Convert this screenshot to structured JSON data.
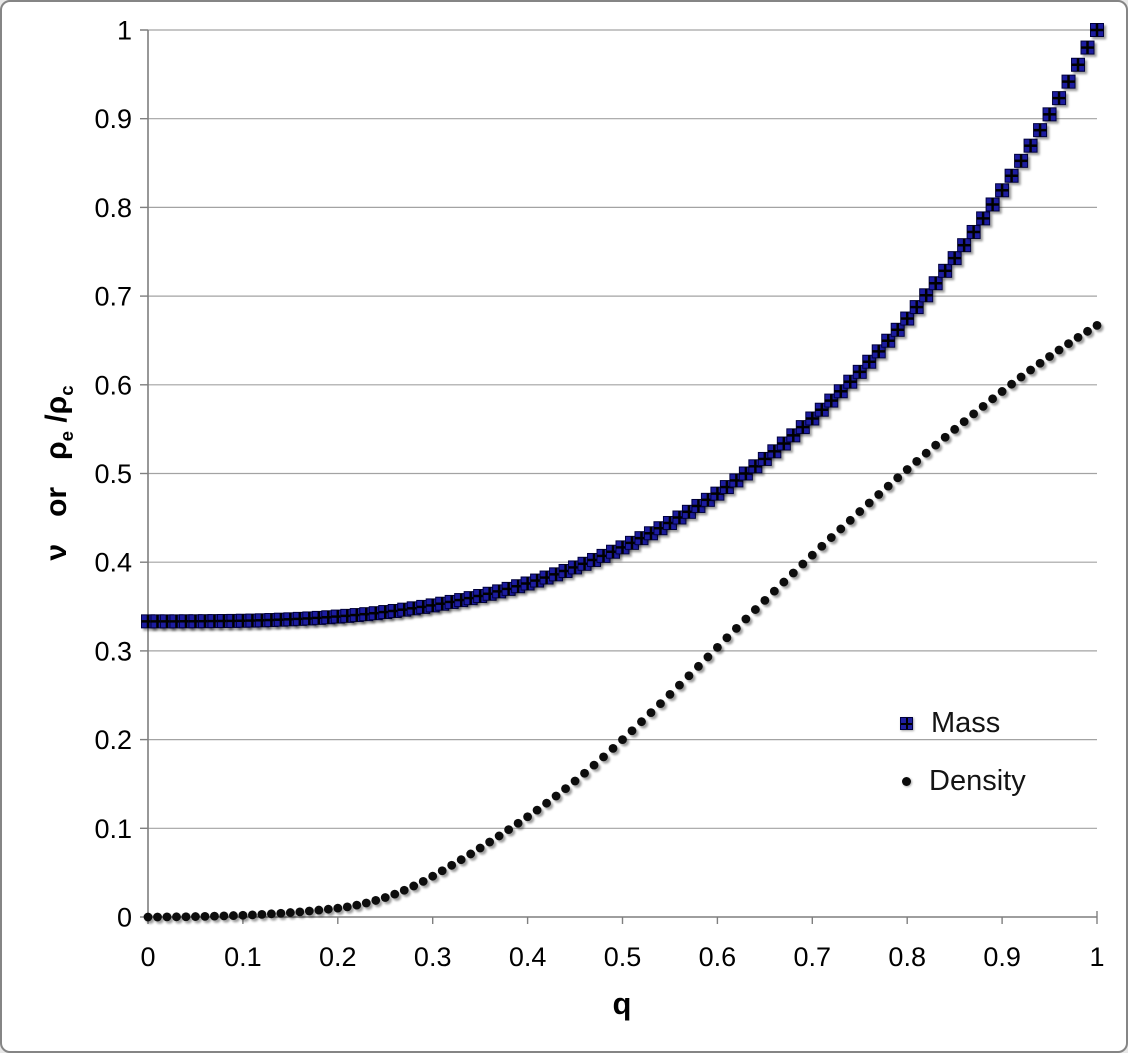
{
  "chart_data": {
    "type": "scatter",
    "title": "",
    "xlabel": "q",
    "ylabel": "ν  or  ρe/ρc",
    "ylabel_parts": {
      "nu": "ν",
      "or": "or",
      "rho1": "ρ",
      "sub1": "e",
      "slash": " /",
      "rho2": "ρ",
      "sub2": "c"
    },
    "xlim": [
      0,
      1
    ],
    "ylim": [
      0,
      1
    ],
    "grid": "horizontal-only",
    "legend_position": "right-center",
    "colors": {
      "mass_fill": "#1f1fa0",
      "mass_border": "#00003c",
      "mass_cross": "#000000",
      "density_fill": "#0a0a0a",
      "gridline": "#a3a3a3",
      "axis": "#7f7f7f",
      "text": "#000000"
    },
    "xticks": {
      "values": [
        0,
        0.1,
        0.2,
        0.3,
        0.4,
        0.5,
        0.6,
        0.7,
        0.8,
        0.9,
        1
      ],
      "labels": [
        "0",
        "0.1",
        "0.2",
        "0.3",
        "0.4",
        "0.5",
        "0.6",
        "0.7",
        "0.8",
        "0.9",
        "1"
      ]
    },
    "yticks": {
      "values": [
        0,
        0.1,
        0.2,
        0.3,
        0.4,
        0.5,
        0.6,
        0.7,
        0.8,
        0.9,
        1
      ],
      "labels": [
        "0",
        "0.1",
        "0.2",
        "0.3",
        "0.4",
        "0.5",
        "0.6",
        "0.7",
        "0.8",
        "0.9",
        "1"
      ]
    },
    "x": [
      0,
      0.01,
      0.02,
      0.03,
      0.04,
      0.05,
      0.06,
      0.07,
      0.08,
      0.09,
      0.1,
      0.11,
      0.12,
      0.13,
      0.14,
      0.15,
      0.16,
      0.17,
      0.18,
      0.19,
      0.2,
      0.21,
      0.22,
      0.23,
      0.24,
      0.25,
      0.26,
      0.27,
      0.28,
      0.29,
      0.3,
      0.31,
      0.32,
      0.33,
      0.34,
      0.35,
      0.36,
      0.37,
      0.38,
      0.39,
      0.4,
      0.41,
      0.42,
      0.43,
      0.44,
      0.45,
      0.46,
      0.47,
      0.48,
      0.49,
      0.5,
      0.51,
      0.52,
      0.53,
      0.54,
      0.55,
      0.56,
      0.57,
      0.58,
      0.59,
      0.6,
      0.61,
      0.62,
      0.63,
      0.64,
      0.65,
      0.66,
      0.67,
      0.68,
      0.69,
      0.7,
      0.71,
      0.72,
      0.73,
      0.74,
      0.75,
      0.76,
      0.77,
      0.78,
      0.79,
      0.8,
      0.81,
      0.82,
      0.83,
      0.84,
      0.85,
      0.86,
      0.87,
      0.88,
      0.89,
      0.9,
      0.91,
      0.92,
      0.93,
      0.94,
      0.95,
      0.96,
      0.97,
      0.98,
      0.99,
      1
    ],
    "series": [
      {
        "name": "Mass",
        "marker": "square-cross",
        "color": "#1f1fa0",
        "values": [
          0.3333,
          0.3333,
          0.3333,
          0.3333,
          0.3334,
          0.3334,
          0.3335,
          0.3336,
          0.3337,
          0.3338,
          0.334,
          0.3342,
          0.3345,
          0.3348,
          0.3352,
          0.3356,
          0.3361,
          0.3366,
          0.3372,
          0.3379,
          0.3387,
          0.3395,
          0.3404,
          0.3414,
          0.3425,
          0.3438,
          0.345,
          0.3465,
          0.348,
          0.3496,
          0.3513,
          0.3532,
          0.3552,
          0.3573,
          0.3595,
          0.3619,
          0.3644,
          0.3671,
          0.3699,
          0.3729,
          0.376,
          0.3793,
          0.3827,
          0.3863,
          0.3901,
          0.3941,
          0.3982,
          0.4025,
          0.4071,
          0.4118,
          0.4167,
          0.4218,
          0.4271,
          0.4326,
          0.4383,
          0.4442,
          0.4504,
          0.4568,
          0.4634,
          0.4703,
          0.4773,
          0.4847,
          0.4922,
          0.5,
          0.5081,
          0.5164,
          0.525,
          0.5338,
          0.543,
          0.5523,
          0.562,
          0.5719,
          0.5822,
          0.5927,
          0.6035,
          0.6146,
          0.626,
          0.6377,
          0.6497,
          0.662,
          0.6747,
          0.6876,
          0.7009,
          0.7145,
          0.7285,
          0.7428,
          0.7574,
          0.7723,
          0.7876,
          0.8033,
          0.8193,
          0.8357,
          0.8525,
          0.8696,
          0.8871,
          0.9049,
          0.9232,
          0.9418,
          0.9608,
          0.9802,
          1
        ]
      },
      {
        "name": "Density",
        "marker": "dot",
        "color": "#0a0a0a",
        "values": [
          0,
          0,
          0.0001,
          0.0002,
          0.0003,
          0.0005,
          0.0007,
          0.001,
          0.0013,
          0.0016,
          0.002,
          0.0024,
          0.003,
          0.0036,
          0.0042,
          0.005,
          0.0058,
          0.0068,
          0.0078,
          0.0088,
          0.01,
          0.0114,
          0.0134,
          0.0158,
          0.0187,
          0.022,
          0.0258,
          0.0302,
          0.035,
          0.0402,
          0.046,
          0.0521,
          0.0583,
          0.0646,
          0.0711,
          0.0778,
          0.0845,
          0.0914,
          0.0985,
          0.1057,
          0.113,
          0.1205,
          0.1283,
          0.1364,
          0.1447,
          0.1533,
          0.1621,
          0.1712,
          0.1805,
          0.1901,
          0.2,
          0.21,
          0.2202,
          0.2304,
          0.2406,
          0.251,
          0.2614,
          0.272,
          0.2826,
          0.2932,
          0.304,
          0.3148,
          0.3254,
          0.336,
          0.3466,
          0.357,
          0.3674,
          0.3776,
          0.3878,
          0.398,
          0.408,
          0.418,
          0.4278,
          0.4375,
          0.4472,
          0.4571,
          0.4667,
          0.4763,
          0.4858,
          0.4952,
          0.5045,
          0.5137,
          0.5229,
          0.532,
          0.5409,
          0.5498,
          0.5585,
          0.5672,
          0.5757,
          0.5842,
          0.5925,
          0.6007,
          0.6088,
          0.6167,
          0.6243,
          0.6319,
          0.6392,
          0.6464,
          0.6535,
          0.6603,
          0.667
        ]
      }
    ]
  }
}
